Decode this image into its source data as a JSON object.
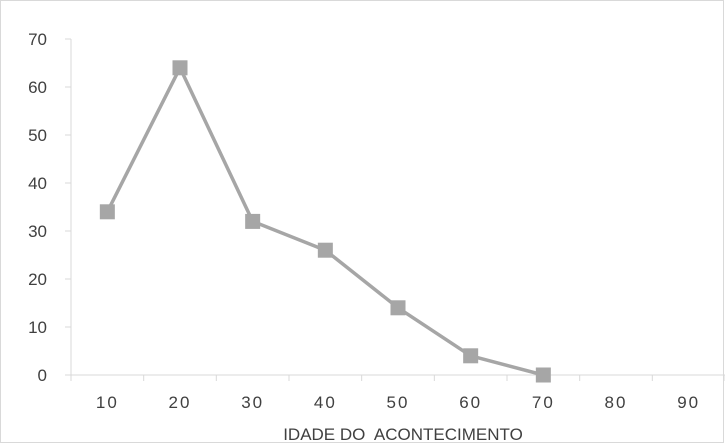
{
  "chart_data": {
    "type": "line",
    "x": [
      10,
      20,
      30,
      40,
      50,
      60,
      70,
      80,
      90
    ],
    "series": [
      {
        "values": [
          34,
          64,
          32,
          26,
          14,
          4,
          0,
          null,
          null
        ]
      }
    ],
    "xlabel": "IDADE DO  ACONTECIMENTO",
    "ylabel": "",
    "ylim": [
      0,
      70
    ],
    "yticks": [
      0,
      10,
      20,
      30,
      40,
      50,
      60,
      70
    ],
    "xtick_labels": [
      "10",
      "20",
      "30",
      "40",
      "50",
      "60",
      "70",
      "80",
      "90"
    ],
    "grid": false,
    "legend": "none",
    "marker": "square",
    "colors": {
      "series": "#a6a6a6",
      "axis": "#d9d9d9",
      "text": "#404040"
    }
  }
}
